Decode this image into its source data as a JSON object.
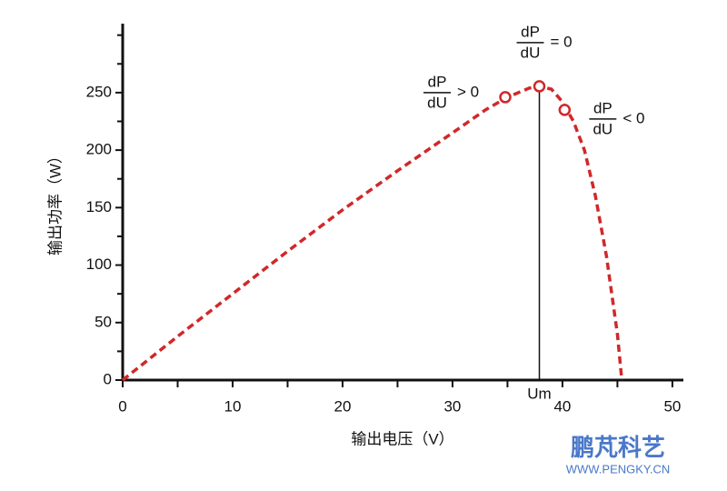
{
  "chart_data": {
    "type": "line",
    "xlabel": "输出电压（V）",
    "ylabel": "输出功率（W）",
    "x": [
      0,
      5,
      10,
      15,
      20,
      25,
      30,
      33,
      35,
      37,
      37.9,
      39,
      40,
      41,
      42,
      43,
      44,
      45,
      45.4
    ],
    "series": [
      {
        "color": "#d0282a",
        "values": [
          0,
          38,
          75,
          112,
          148,
          182,
          215,
          235,
          246,
          254,
          255.5,
          253,
          242,
          225,
          200,
          160,
          108,
          40,
          0
        ]
      }
    ],
    "xlim": [
      0,
      51
    ],
    "xticks": [
      0,
      10,
      20,
      30,
      40,
      50
    ],
    "xminorticks": [
      5,
      15,
      25,
      35,
      45
    ],
    "ylim": [
      0,
      310
    ],
    "yticks": [
      0,
      50,
      100,
      150,
      200,
      250
    ],
    "yminorticks": [
      25,
      75,
      125,
      175,
      225,
      275,
      300
    ],
    "annotations": [
      {
        "x": 34.8,
        "y": 246,
        "numerator": "dP",
        "denominator": "dU",
        "relation": "> 0"
      },
      {
        "x": 37.9,
        "y": 255.5,
        "numerator": "dP",
        "denominator": "dU",
        "relation": "= 0"
      },
      {
        "x": 40.2,
        "y": 235,
        "numerator": "dP",
        "denominator": "dU",
        "relation": "< 0"
      }
    ],
    "vline": {
      "x": 37.9,
      "y": 255.5,
      "label": "Um"
    },
    "watermark": {
      "title": "鹏芃科艺",
      "url": "WWW.PENGKY.CN"
    }
  }
}
